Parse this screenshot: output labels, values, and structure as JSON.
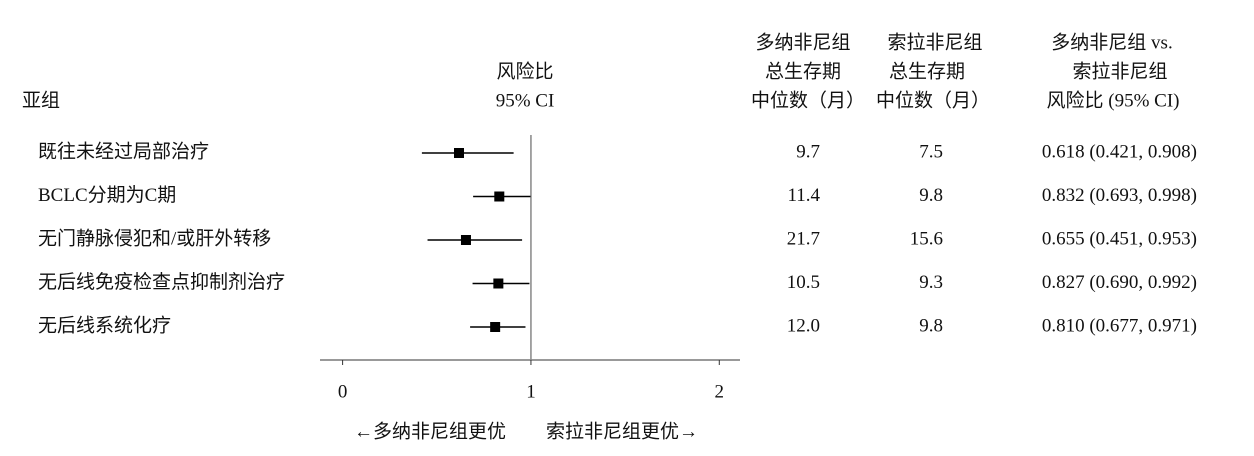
{
  "chart_data": {
    "type": "forest",
    "headers": {
      "subgroup": "亚组",
      "plot": [
        "风险比",
        "95% CI"
      ],
      "median_donafenib": [
        "多纳非尼组",
        "总生存期",
        "中位数（月）"
      ],
      "median_sorafenib": [
        "索拉非尼组",
        "总生存期",
        "中位数（月）"
      ],
      "comparison": [
        "多纳非尼组 vs.",
        "索拉非尼组",
        "风险比 (95% CI)"
      ]
    },
    "categories": [
      "既往未经过局部治疗",
      "BCLC分期为C期",
      "无门静脉侵犯和/或肝外转移",
      "无后线免疫检查点抑制剂治疗",
      "无后线系统化疗"
    ],
    "values": [
      0.618,
      0.832,
      0.655,
      0.827,
      0.81
    ],
    "ci_low": [
      0.421,
      0.693,
      0.451,
      0.69,
      0.677
    ],
    "ci_high": [
      0.908,
      0.998,
      0.953,
      0.992,
      0.971
    ],
    "value_labels": [
      "0.618 (0.421, 0.908)",
      "0.832 (0.693, 0.998)",
      "0.655 (0.451, 0.953)",
      "0.827 (0.690, 0.992)",
      "0.810 (0.677, 0.971)"
    ],
    "median_donafenib": {
      "values": [
        9.7,
        11.4,
        21.7,
        10.5,
        12.0
      ],
      "value_labels": [
        "9.7",
        "11.4",
        "21.7",
        "10.5",
        "12.0"
      ]
    },
    "median_sorafenib": {
      "values": [
        7.5,
        9.8,
        15.6,
        9.3,
        9.8
      ],
      "value_labels": [
        "7.5",
        "9.8",
        "15.6",
        "9.3",
        "9.8"
      ]
    },
    "xlim": [
      -0.12,
      2.11
    ],
    "xticks": [
      0,
      1,
      2
    ],
    "reference": 1,
    "xlabel": [
      "←多纳非尼组更优",
      "索拉非尼组更优→"
    ],
    "color": "#000000"
  }
}
